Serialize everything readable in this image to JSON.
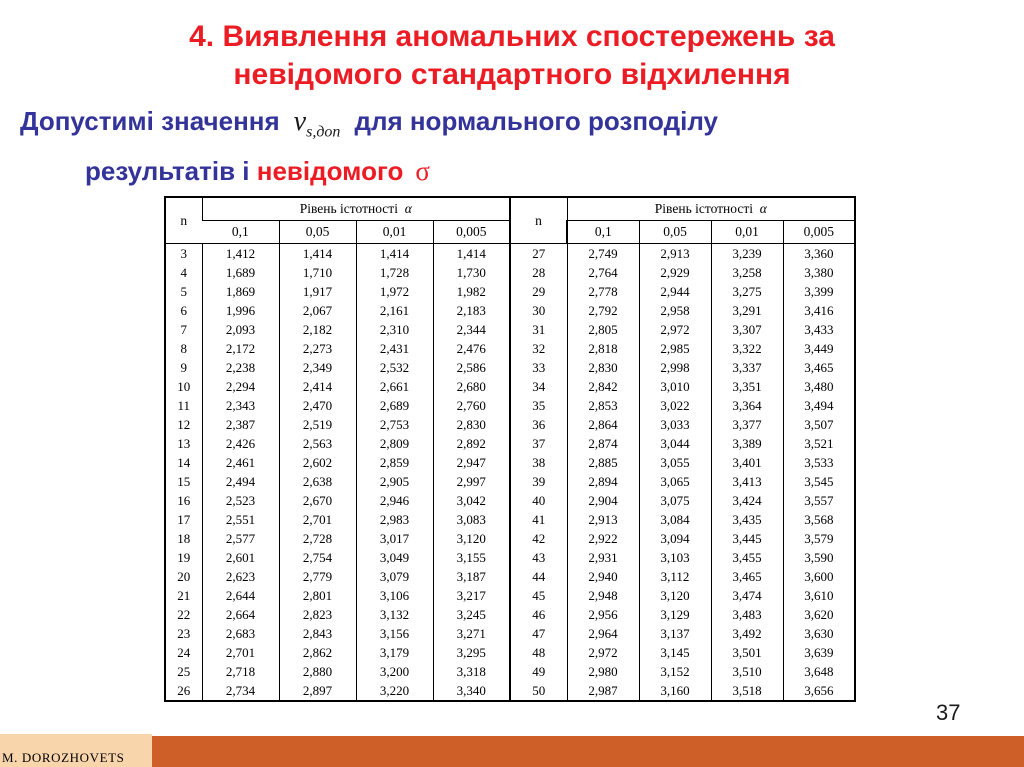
{
  "title": {
    "line1": "4. Виявлення аномальних спостережень за",
    "line2": "невідомого стандартного відхилення"
  },
  "subtitle": {
    "text_before": "Допустимі значення",
    "formula_base": "ν",
    "formula_subscript": "s,доп",
    "text_after": "для нормального розподілу",
    "line2_blue": "результатів і",
    "line2_red": "невідомого",
    "sigma": "σ"
  },
  "table": {
    "n_header": "n",
    "significance_header": "Рівень істотності",
    "alpha_symbol": "α",
    "alpha_levels": [
      "0,1",
      "0,05",
      "0,01",
      "0,005"
    ],
    "columns": [
      "n",
      "0,1",
      "0,05",
      "0,01",
      "0,005",
      "n",
      "0,1",
      "0,05",
      "0,01",
      "0,005"
    ],
    "rows": [
      [
        "3",
        "1,412",
        "1,414",
        "1,414",
        "1,414",
        "27",
        "2,749",
        "2,913",
        "3,239",
        "3,360"
      ],
      [
        "4",
        "1,689",
        "1,710",
        "1,728",
        "1,730",
        "28",
        "2,764",
        "2,929",
        "3,258",
        "3,380"
      ],
      [
        "5",
        "1,869",
        "1,917",
        "1,972",
        "1,982",
        "29",
        "2,778",
        "2,944",
        "3,275",
        "3,399"
      ],
      [
        "6",
        "1,996",
        "2,067",
        "2,161",
        "2,183",
        "30",
        "2,792",
        "2,958",
        "3,291",
        "3,416"
      ],
      [
        "7",
        "2,093",
        "2,182",
        "2,310",
        "2,344",
        "31",
        "2,805",
        "2,972",
        "3,307",
        "3,433"
      ],
      [
        "8",
        "2,172",
        "2,273",
        "2,431",
        "2,476",
        "32",
        "2,818",
        "2,985",
        "3,322",
        "3,449"
      ],
      [
        "9",
        "2,238",
        "2,349",
        "2,532",
        "2,586",
        "33",
        "2,830",
        "2,998",
        "3,337",
        "3,465"
      ],
      [
        "10",
        "2,294",
        "2,414",
        "2,661",
        "2,680",
        "34",
        "2,842",
        "3,010",
        "3,351",
        "3,480"
      ],
      [
        "11",
        "2,343",
        "2,470",
        "2,689",
        "2,760",
        "35",
        "2,853",
        "3,022",
        "3,364",
        "3,494"
      ],
      [
        "12",
        "2,387",
        "2,519",
        "2,753",
        "2,830",
        "36",
        "2,864",
        "3,033",
        "3,377",
        "3,507"
      ],
      [
        "13",
        "2,426",
        "2,563",
        "2,809",
        "2,892",
        "37",
        "2,874",
        "3,044",
        "3,389",
        "3,521"
      ],
      [
        "14",
        "2,461",
        "2,602",
        "2,859",
        "2,947",
        "38",
        "2,885",
        "3,055",
        "3,401",
        "3,533"
      ],
      [
        "15",
        "2,494",
        "2,638",
        "2,905",
        "2,997",
        "39",
        "2,894",
        "3,065",
        "3,413",
        "3,545"
      ],
      [
        "16",
        "2,523",
        "2,670",
        "2,946",
        "3,042",
        "40",
        "2,904",
        "3,075",
        "3,424",
        "3,557"
      ],
      [
        "17",
        "2,551",
        "2,701",
        "2,983",
        "3,083",
        "41",
        "2,913",
        "3,084",
        "3,435",
        "3,568"
      ],
      [
        "18",
        "2,577",
        "2,728",
        "3,017",
        "3,120",
        "42",
        "2,922",
        "3,094",
        "3,445",
        "3,579"
      ],
      [
        "19",
        "2,601",
        "2,754",
        "3,049",
        "3,155",
        "43",
        "2,931",
        "3,103",
        "3,455",
        "3,590"
      ],
      [
        "20",
        "2,623",
        "2,779",
        "3,079",
        "3,187",
        "44",
        "2,940",
        "3,112",
        "3,465",
        "3,600"
      ],
      [
        "21",
        "2,644",
        "2,801",
        "3,106",
        "3,217",
        "45",
        "2,948",
        "3,120",
        "3,474",
        "3,610"
      ],
      [
        "22",
        "2,664",
        "2,823",
        "3,132",
        "3,245",
        "46",
        "2,956",
        "3,129",
        "3,483",
        "3,620"
      ],
      [
        "23",
        "2,683",
        "2,843",
        "3,156",
        "3,271",
        "47",
        "2,964",
        "3,137",
        "3,492",
        "3,630"
      ],
      [
        "24",
        "2,701",
        "2,862",
        "3,179",
        "3,295",
        "48",
        "2,972",
        "3,145",
        "3,501",
        "3,639"
      ],
      [
        "25",
        "2,718",
        "2,880",
        "3,200",
        "3,318",
        "49",
        "2,980",
        "3,152",
        "3,510",
        "3,648"
      ],
      [
        "26",
        "2,734",
        "2,897",
        "3,220",
        "3,340",
        "50",
        "2,987",
        "3,160",
        "3,518",
        "3,656"
      ]
    ]
  },
  "footer": {
    "author": "M. DOROZHOVETS",
    "page_number": "37"
  },
  "colors": {
    "title_red": "#EC1C24",
    "subtitle_blue": "#333399",
    "accent_orange": "#CE5F29",
    "footer_peach": "#F8D5AB"
  }
}
